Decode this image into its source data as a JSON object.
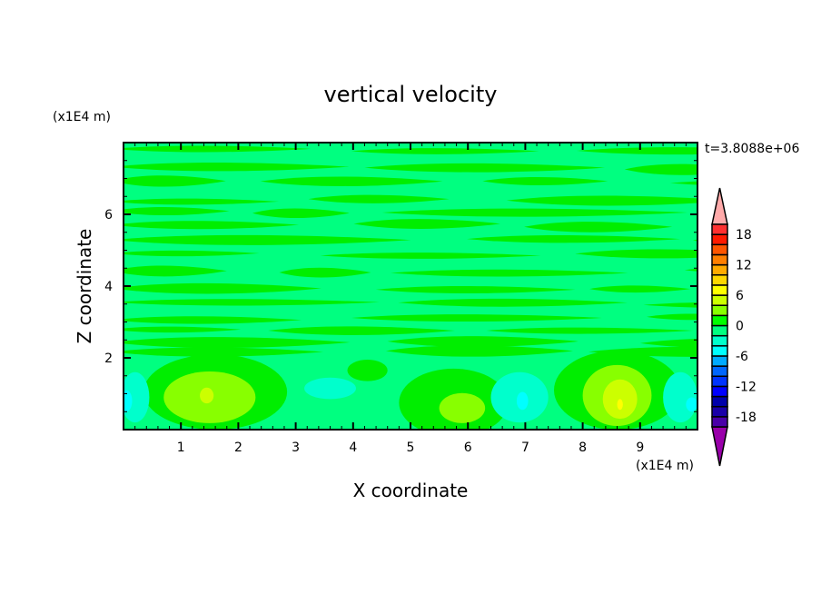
{
  "chart_data": {
    "type": "contour",
    "title": "vertical velocity",
    "xlabel": "X coordinate",
    "ylabel": "Z coordinate",
    "x_unit_label": "(x1E4 m)",
    "y_unit_label": "(x1E4 m)",
    "time_label": "t=3.8088e+06",
    "xlim": [
      0,
      10
    ],
    "ylim": [
      0,
      8
    ],
    "x_ticks": [
      1,
      2,
      3,
      4,
      5,
      6,
      7,
      8,
      9
    ],
    "y_ticks": [
      2,
      4,
      6
    ],
    "colorbar": {
      "levels": [
        -20,
        -18,
        -16,
        -14,
        -12,
        -10,
        -8,
        -6,
        -4,
        -2,
        0,
        2,
        4,
        6,
        8,
        10,
        12,
        14,
        16,
        18,
        20
      ],
      "tick_labels": [
        "18",
        "12",
        "6",
        "0",
        "-6",
        "-12",
        "-18"
      ],
      "tick_values": [
        18,
        12,
        6,
        0,
        -6,
        -12,
        -18
      ],
      "colors": [
        "#4a00a8",
        "#1a00a8",
        "#0000aa",
        "#0000ff",
        "#0033ff",
        "#0066ff",
        "#00aaff",
        "#00ffff",
        "#00ffcc",
        "#00ff80",
        "#00ff00",
        "#88ff00",
        "#ccff00",
        "#ffff00",
        "#ffd700",
        "#ffaa00",
        "#ff7f00",
        "#ff5500",
        "#ff1a00",
        "#ff3030"
      ],
      "over_color": "#ffaaaa",
      "under_color": "#9900aa"
    },
    "background_level_color": "#00ff80",
    "bands_z": [
      7.8,
      7.3,
      6.9,
      6.4,
      6.05,
      5.7,
      5.3,
      4.9,
      4.4,
      3.9,
      3.5,
      3.1,
      2.8,
      2.45,
      2.2
    ],
    "features": [
      {
        "x": 1.6,
        "z": 1.05,
        "rx": 1.25,
        "rz": 1.05,
        "color": "#00ee00"
      },
      {
        "x": 1.5,
        "z": 0.9,
        "rx": 0.8,
        "rz": 0.72,
        "color": "#88ff00"
      },
      {
        "x": 1.45,
        "z": 0.95,
        "rx": 0.12,
        "rz": 0.22,
        "color": "#ccff00"
      },
      {
        "x": 5.75,
        "z": 0.75,
        "rx": 0.95,
        "rz": 0.95,
        "color": "#00ee00"
      },
      {
        "x": 5.9,
        "z": 0.6,
        "rx": 0.4,
        "rz": 0.42,
        "color": "#88ff00"
      },
      {
        "x": 4.25,
        "z": 1.65,
        "rx": 0.35,
        "rz": 0.3,
        "color": "#00ee00"
      },
      {
        "x": 8.6,
        "z": 1.1,
        "rx": 1.1,
        "rz": 1.1,
        "color": "#00ee00"
      },
      {
        "x": 8.6,
        "z": 0.95,
        "rx": 0.6,
        "rz": 0.85,
        "color": "#88ff00"
      },
      {
        "x": 8.65,
        "z": 0.85,
        "rx": 0.3,
        "rz": 0.55,
        "color": "#ccff00"
      },
      {
        "x": 8.65,
        "z": 0.7,
        "rx": 0.05,
        "rz": 0.15,
        "color": "#ffff00"
      },
      {
        "x": 0.2,
        "z": 0.9,
        "rx": 0.25,
        "rz": 0.7,
        "color": "#00ffcc"
      },
      {
        "x": 3.6,
        "z": 1.15,
        "rx": 0.45,
        "rz": 0.3,
        "color": "#00ffcc"
      },
      {
        "x": 6.9,
        "z": 0.9,
        "rx": 0.5,
        "rz": 0.7,
        "color": "#00ffcc"
      },
      {
        "x": 9.7,
        "z": 0.9,
        "rx": 0.3,
        "rz": 0.7,
        "color": "#00ffcc"
      },
      {
        "x": 0.05,
        "z": 0.8,
        "rx": 0.1,
        "rz": 0.3,
        "color": "#00ffff"
      },
      {
        "x": 6.95,
        "z": 0.8,
        "rx": 0.1,
        "rz": 0.25,
        "color": "#00ffff"
      },
      {
        "x": 9.9,
        "z": 0.7,
        "rx": 0.1,
        "rz": 0.2,
        "color": "#00ffff"
      }
    ]
  }
}
